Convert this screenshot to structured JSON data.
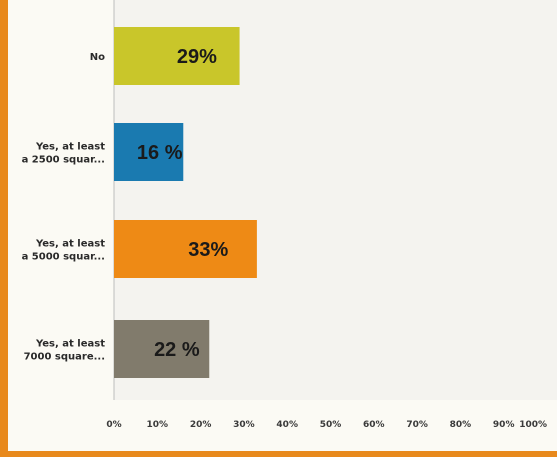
{
  "chart_data": {
    "type": "bar",
    "orientation": "horizontal",
    "categories": [
      "No",
      "Yes, at least\na 2500 squar...",
      "Yes, at least\na 5000 squar...",
      "Yes, at least\n7000 square..."
    ],
    "values": [
      29,
      16,
      33,
      22
    ],
    "data_labels": [
      "29%",
      "16 %",
      "33%",
      "22 %"
    ],
    "colors": [
      "#c9c62a",
      "#1a7ab0",
      "#ee8a15",
      "#817b6c"
    ],
    "xlim": [
      0,
      100
    ],
    "xticks": [
      "0%",
      "10%",
      "20%",
      "30%",
      "40%",
      "50%",
      "60%",
      "70%",
      "80%",
      "90%",
      "100%"
    ],
    "grid": false,
    "legend": "none",
    "title": "",
    "xlabel": "",
    "ylabel": ""
  }
}
